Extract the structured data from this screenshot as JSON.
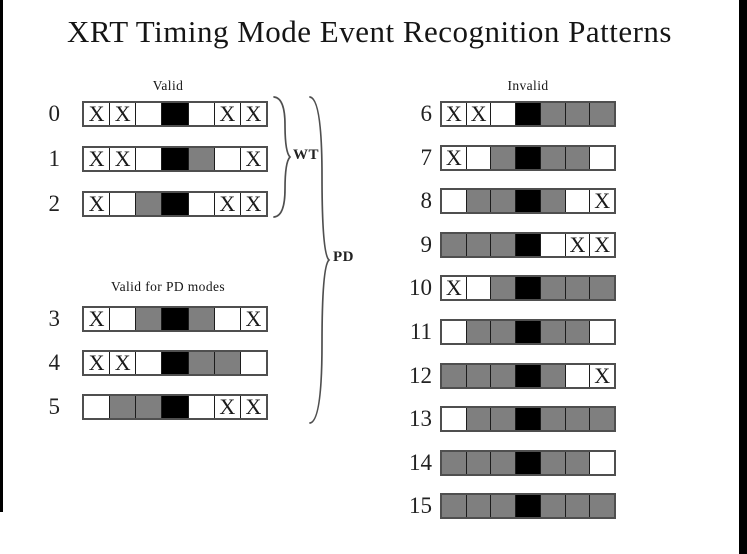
{
  "title": "XRT Timing Mode Event Recognition Patterns",
  "glyphs": {
    "x_mark": "X"
  },
  "colors": {
    "black": "#000000",
    "gray": "#7f7f7f",
    "white": "#ffffff",
    "outline": "#4f4f4f"
  },
  "left": {
    "valid_heading": "Valid",
    "wt_label": "WT",
    "pd_label": "PD",
    "valid_pd_heading": "Valid for PD modes",
    "valid_rows": [
      {
        "id": "0",
        "cells": [
          "x",
          "x",
          "w",
          "b",
          "w",
          "x",
          "x"
        ]
      },
      {
        "id": "1",
        "cells": [
          "x",
          "x",
          "w",
          "b",
          "g",
          "w",
          "x"
        ]
      },
      {
        "id": "2",
        "cells": [
          "x",
          "w",
          "g",
          "b",
          "w",
          "x",
          "x"
        ]
      }
    ],
    "valid_pd_rows": [
      {
        "id": "3",
        "cells": [
          "x",
          "w",
          "g",
          "b",
          "g",
          "w",
          "x"
        ]
      },
      {
        "id": "4",
        "cells": [
          "x",
          "x",
          "w",
          "b",
          "g",
          "g",
          "w"
        ]
      },
      {
        "id": "5",
        "cells": [
          "w",
          "g",
          "g",
          "b",
          "w",
          "x",
          "x"
        ]
      }
    ]
  },
  "right": {
    "invalid_heading": "Invalid",
    "rows": [
      {
        "id": "6",
        "cells": [
          "x",
          "x",
          "w",
          "b",
          "g",
          "g",
          "g"
        ]
      },
      {
        "id": "7",
        "cells": [
          "x",
          "w",
          "g",
          "b",
          "g",
          "g",
          "w"
        ]
      },
      {
        "id": "8",
        "cells": [
          "w",
          "g",
          "g",
          "b",
          "g",
          "w",
          "x"
        ]
      },
      {
        "id": "9",
        "cells": [
          "g",
          "g",
          "g",
          "b",
          "w",
          "x",
          "x"
        ]
      },
      {
        "id": "10",
        "cells": [
          "x",
          "w",
          "g",
          "b",
          "g",
          "g",
          "g"
        ]
      },
      {
        "id": "11",
        "cells": [
          "w",
          "g",
          "g",
          "b",
          "g",
          "g",
          "w"
        ]
      },
      {
        "id": "12",
        "cells": [
          "g",
          "g",
          "g",
          "b",
          "g",
          "w",
          "x"
        ]
      },
      {
        "id": "13",
        "cells": [
          "w",
          "g",
          "g",
          "b",
          "g",
          "g",
          "g"
        ]
      },
      {
        "id": "14",
        "cells": [
          "g",
          "g",
          "g",
          "b",
          "g",
          "g",
          "w"
        ]
      },
      {
        "id": "15",
        "cells": [
          "g",
          "g",
          "g",
          "b",
          "g",
          "g",
          "g"
        ]
      }
    ]
  }
}
